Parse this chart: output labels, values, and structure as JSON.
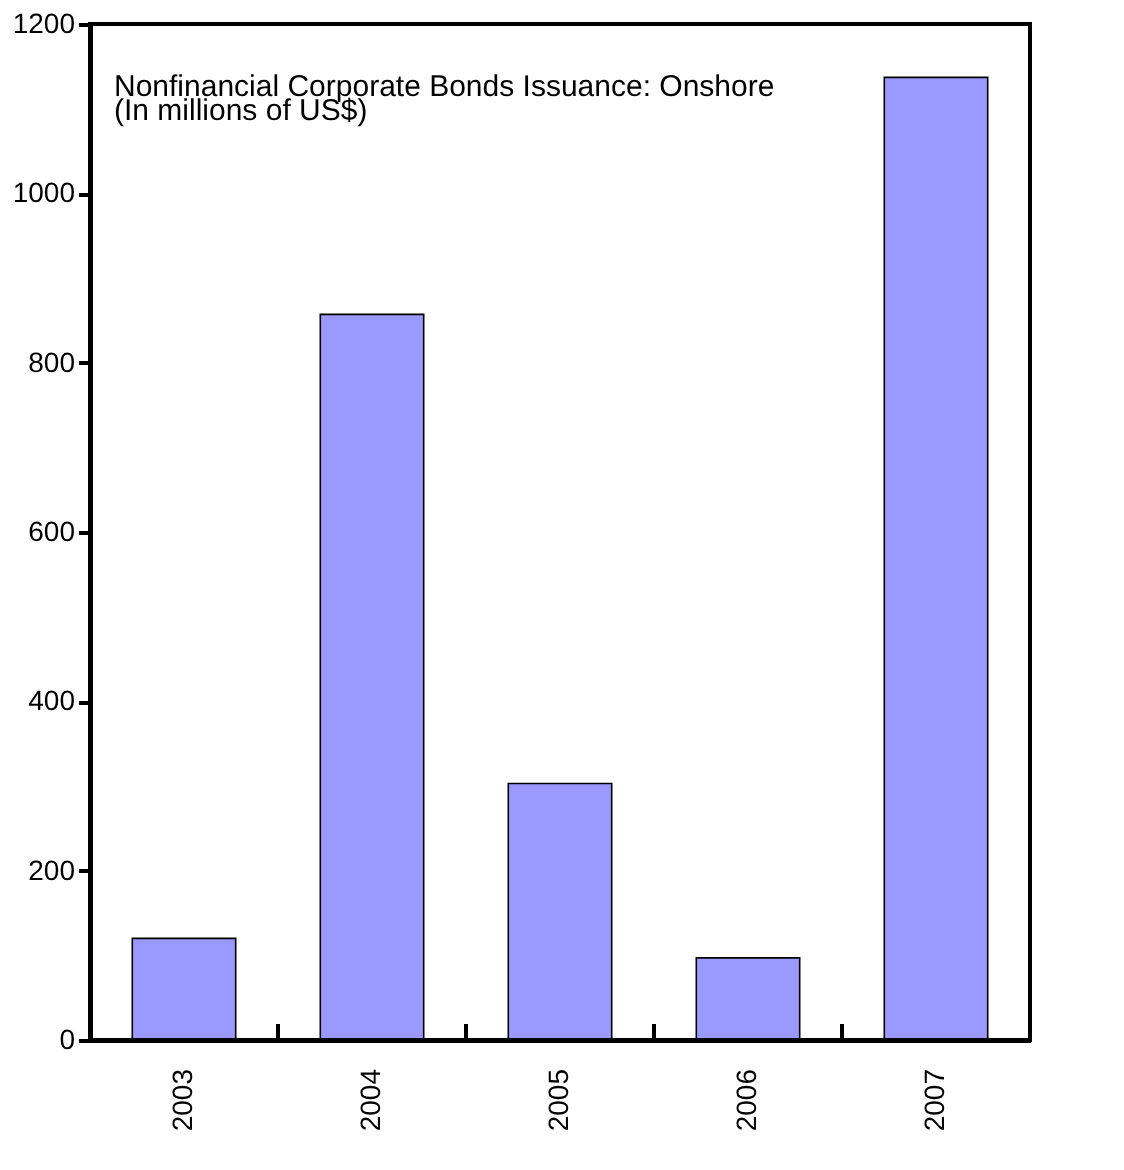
{
  "chart_data": {
    "type": "bar",
    "title": "Nonfinancial Corporate Bonds Issuance: Onshore",
    "subtitle": "(In millions of US$)",
    "categories": [
      "2003",
      "2004",
      "2005",
      "2006",
      "2007"
    ],
    "values": [
      120,
      857,
      303,
      97,
      1137
    ],
    "color": "#9999ff",
    "ylim": [
      0,
      1200
    ],
    "yticks": [
      0,
      200,
      400,
      600,
      800,
      1000,
      1200
    ],
    "grid": false
  }
}
